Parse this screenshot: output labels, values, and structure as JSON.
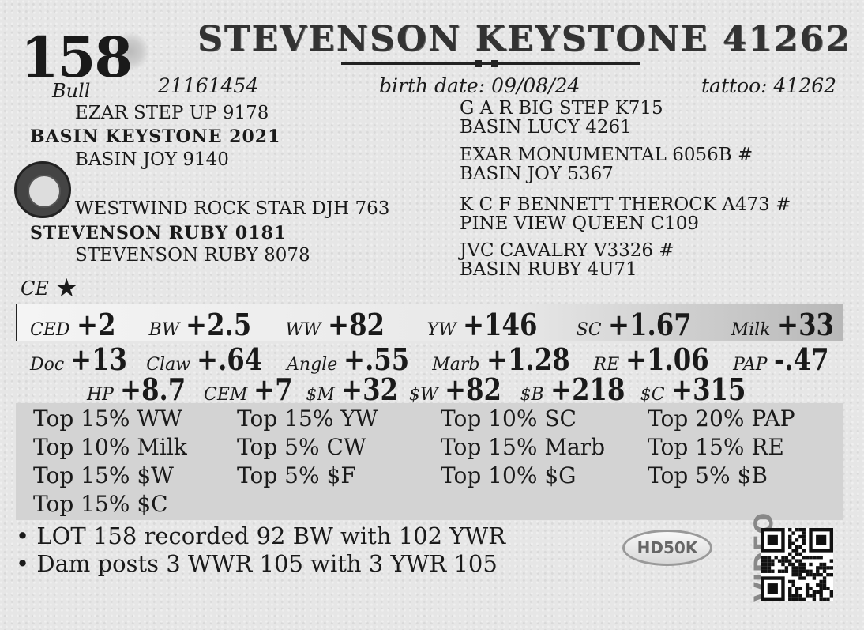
{
  "lot": {
    "number": "158",
    "sex": "Bull",
    "title": "STEVENSON KEYSTONE 41262",
    "registration": "21161454",
    "birth_date": "birth date:  09/08/24",
    "tattoo": "tattoo: 41262"
  },
  "pedigree": {
    "sire": "BASIN KEYSTONE 2021",
    "sire_sire": "EZAR STEP UP 9178",
    "sire_dam": "BASIN JOY 9140",
    "dam": "STEVENSON RUBY 0181",
    "dam_sire": "WESTWIND ROCK STAR DJH 763",
    "dam_dam": "STEVENSON RUBY 8078",
    "ss_sire": "G A R BIG STEP K715",
    "ss_dam": "BASIN LUCY 4261",
    "sd_sire": "EXAR MONUMENTAL 6056B #",
    "sd_dam": "BASIN JOY 5367",
    "ds_sire": "K C F BENNETT THEROCK A473 #",
    "ds_dam": "PINE VIEW QUEEN C109",
    "dd_sire": "JVC CAVALRY V3326 #",
    "dd_dam": "BASIN RUBY 4U71"
  },
  "ce": {
    "label": "CE",
    "star": "★"
  },
  "epds_row1": [
    {
      "l": "CED",
      "v": "+2"
    },
    {
      "l": "BW",
      "v": "+2.5"
    },
    {
      "l": "WW",
      "v": "+82"
    },
    {
      "l": "YW",
      "v": "+146"
    },
    {
      "l": "SC",
      "v": "+1.67"
    },
    {
      "l": "Milk",
      "v": "+33"
    }
  ],
  "epds_row2": [
    {
      "l": "Doc",
      "v": "+13"
    },
    {
      "l": "Claw",
      "v": "+.64"
    },
    {
      "l": "Angle",
      "v": "+.55"
    },
    {
      "l": "Marb",
      "v": "+1.28"
    },
    {
      "l": "RE",
      "v": "+1.06"
    },
    {
      "l": "PAP",
      "v": "-.47"
    }
  ],
  "epds_row3": [
    {
      "l": "HP",
      "v": "+8.7"
    },
    {
      "l": "CEM",
      "v": "+7"
    },
    {
      "l": "$M",
      "v": "+32"
    },
    {
      "l": "$W",
      "v": "+82"
    },
    {
      "l": "$B",
      "v": "+218"
    },
    {
      "l": "$C",
      "v": "+315"
    }
  ],
  "percentiles": [
    [
      "Top 15% WW",
      "Top 15% YW",
      "Top 10% SC",
      "Top 20% PAP"
    ],
    [
      "Top 10% Milk",
      "Top 5% CW",
      "Top 15% Marb",
      "Top 15% RE"
    ],
    [
      "Top 15% $W",
      "Top 5% $F",
      "Top 10% $G",
      "Top 5% $B"
    ],
    [
      "Top 15% $C"
    ]
  ],
  "notes": [
    "• LOT 158 recorded 92 BW with 102 YWR",
    "• Dam posts 3 WWR 105 with 3 YWR 105"
  ],
  "logos": {
    "hd50k": "HD50K",
    "video": "VIDEO",
    "qr_icon": "qr-code-icon"
  }
}
